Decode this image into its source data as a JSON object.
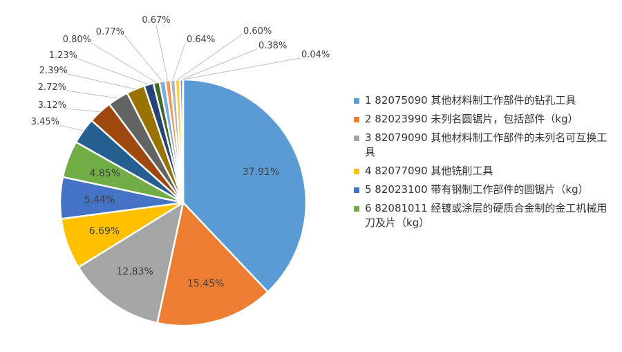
{
  "chart_data": {
    "type": "pie",
    "title": "",
    "start_angle_deg": 0,
    "direction": "clockwise",
    "legend_position": "right",
    "slices": [
      {
        "label": "37.91%",
        "value": 37.91,
        "color": "#5B9BD5",
        "legend": "1 82075090 其他材料制工作部件的钻孔工具",
        "label_style": "inside",
        "label_color": "#404040"
      },
      {
        "label": "15.45%",
        "value": 15.45,
        "color": "#ED7D31",
        "legend": "2 82023990 未列名圆锯片，包括部件（kg）",
        "label_style": "inside",
        "label_color": "#404040"
      },
      {
        "label": "12.83%",
        "value": 12.83,
        "color": "#A5A5A5",
        "legend": "3 82079090 其他材料制工作部件的未列名可互换工具",
        "label_style": "inside",
        "label_color": "#404040"
      },
      {
        "label": "6.69%",
        "value": 6.69,
        "color": "#FFC000",
        "legend": "4 82077090 其他铣削工具",
        "label_style": "inside",
        "label_color": "#404040"
      },
      {
        "label": "5.44%",
        "value": 5.44,
        "color": "#4472C4",
        "legend": "5 82023100 带有钢制工作部件的圆锯片（kg）",
        "label_style": "inside",
        "label_color": "#404040"
      },
      {
        "label": "4.85%",
        "value": 4.85,
        "color": "#70AD47",
        "legend": "6 82081011 经镀或涂层的硬质合金制的金工机械用刀及片（kg）",
        "label_style": "inside",
        "label_color": "#404040"
      },
      {
        "label": "3.45%",
        "value": 3.45,
        "color": "#255E91",
        "label_style": "outside"
      },
      {
        "label": "3.12%",
        "value": 3.12,
        "color": "#9E480E",
        "label_style": "outside"
      },
      {
        "label": "2.72%",
        "value": 2.72,
        "color": "#636363",
        "label_style": "outside"
      },
      {
        "label": "2.39%",
        "value": 2.39,
        "color": "#997300",
        "label_style": "outside"
      },
      {
        "label": "1.23%",
        "value": 1.23,
        "color": "#264478",
        "label_style": "outside"
      },
      {
        "label": "0.80%",
        "value": 0.8,
        "color": "#43682B",
        "label_style": "outside"
      },
      {
        "label": "0.77%",
        "value": 0.77,
        "color": "#7CAFDD",
        "label_style": "outside"
      },
      {
        "label": "0.67%",
        "value": 0.67,
        "color": "#F1975A",
        "label_style": "outside"
      },
      {
        "label": "0.64%",
        "value": 0.64,
        "color": "#B7B7B7",
        "label_style": "outside"
      },
      {
        "label": "0.60%",
        "value": 0.6,
        "color": "#FFCD33",
        "label_style": "outside"
      },
      {
        "label": "0.38%",
        "value": 0.38,
        "color": "#698ED0",
        "label_style": "outside"
      },
      {
        "label": "0.04%",
        "value": 0.04,
        "color": "#8CC168",
        "label_style": "outside"
      }
    ]
  }
}
